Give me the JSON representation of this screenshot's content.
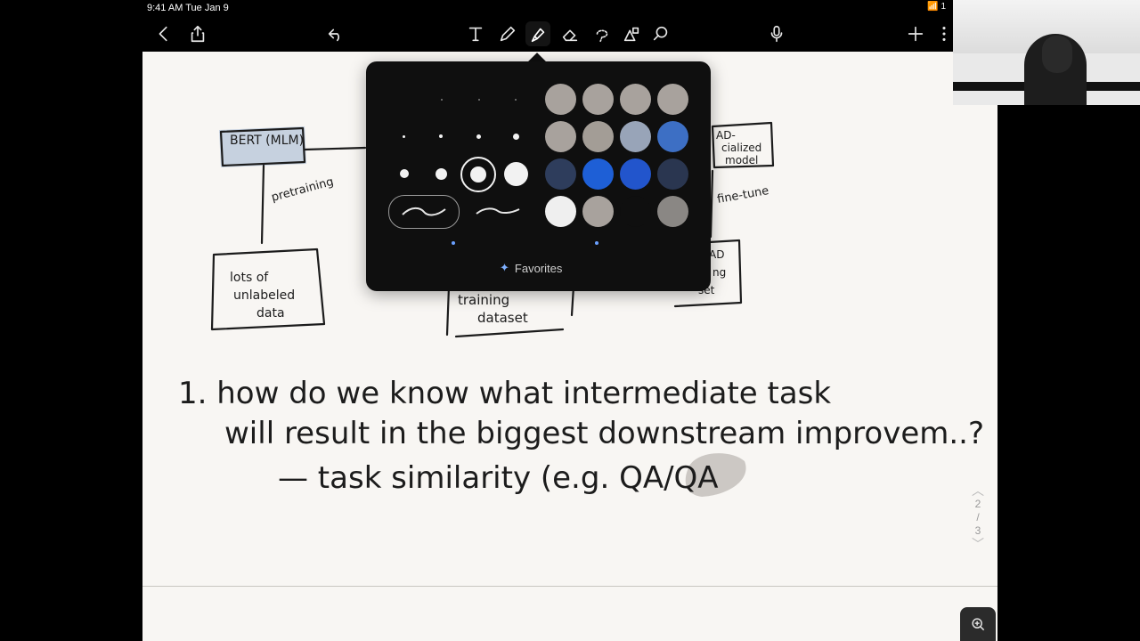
{
  "status_bar": {
    "time": "9:41 AM",
    "date": "Tue Jan 9",
    "battery": "1"
  },
  "toolbar": {
    "icons": [
      "back-chevron-icon",
      "share-icon",
      "undo-icon",
      "text-tool-icon",
      "pen-icon",
      "highlighter-icon",
      "eraser-icon",
      "lasso-icon",
      "shapes-icon",
      "zoom-tool-icon",
      "microphone-icon",
      "add-icon",
      "more-icon"
    ],
    "active_tool": "highlighter"
  },
  "color_popover": {
    "colors": [
      "#a8a29d",
      "#a8a29d",
      "#a8a29d",
      "#a8a29d",
      "#a8a29d",
      "#a39d96",
      "#98a4b8",
      "#3d6fc4",
      "#2e3d5c",
      "#1e5fd6",
      "#2255cc",
      "#2a3650",
      "#efefef",
      "#a8a29d",
      "#0f0f0f",
      "#8a8784"
    ],
    "favorites_label": "Favorites"
  },
  "note": {
    "diagram": {
      "bert_box": "BERT (MLM)",
      "pretraining_label": "pretraining",
      "unlabeled_box": [
        "lots of",
        "unlabeled",
        "data"
      ],
      "training_box": [
        "training",
        "dataset"
      ],
      "model_box": [
        "AD-",
        "cialized",
        "model"
      ],
      "finetune_label": "fine-tune",
      "ad_box": [
        "AD",
        "ng",
        "set"
      ]
    },
    "lines": [
      "1. how do we know what intermediate task",
      "will result in the biggest downstream improvem..?",
      "— task similarity (e.g. QA/QA"
    ],
    "highlight_text": "QA"
  },
  "page_indicator": {
    "current": "2",
    "separator": "/",
    "total": "3"
  }
}
